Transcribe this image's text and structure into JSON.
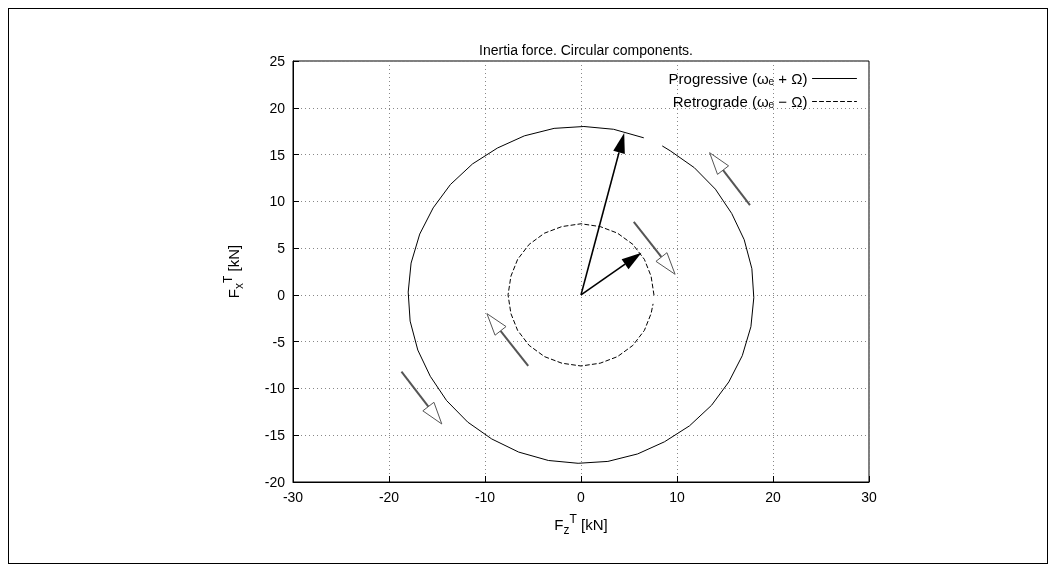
{
  "chart_data": {
    "type": "line",
    "title": "Inertia force. Circular components.",
    "xlabel": "F$_{z}$$^{T}$ [kN]",
    "ylabel": "F$_{x}$$^{T}$ [kN]",
    "xlim": [
      -30,
      30
    ],
    "xticks": [
      -30,
      -20,
      -10,
      0,
      10,
      20,
      30
    ],
    "ylim": [
      -20,
      25
    ],
    "yticks": [
      -20,
      -15,
      -10,
      -5,
      0,
      5,
      10,
      15,
      20,
      25
    ],
    "grid": true,
    "legend": "top right",
    "marker": "none",
    "series": [
      {
        "name": "Progressive (ωₑ + Ω)",
        "color": "#000000",
        "line_style": "solid",
        "x": [
          6.5,
          3.4,
          0.3,
          -2.8,
          -5.9,
          -8.7,
          -11.3,
          -13.6,
          -15.4,
          -16.8,
          -17.7,
          -18.0,
          -17.8,
          -17.0,
          -15.7,
          -14.0,
          -11.8,
          -9.3,
          -6.5,
          -3.4,
          -0.3,
          2.8,
          5.9,
          8.7,
          11.3,
          13.6,
          15.4,
          16.8,
          17.7,
          18.0,
          17.8,
          17.0,
          15.7,
          14.0,
          11.8,
          9.3,
          8.5
        ],
        "values": [
          16.8,
          17.7,
          18.0,
          17.8,
          17.0,
          15.7,
          14.0,
          11.8,
          9.3,
          6.5,
          3.4,
          0.3,
          -2.8,
          -5.9,
          -8.7,
          -11.3,
          -13.6,
          -15.4,
          -16.8,
          -17.7,
          -18.0,
          -17.8,
          -17.0,
          -15.7,
          -14.0,
          -11.8,
          -9.3,
          -6.5,
          -3.4,
          -0.3,
          2.8,
          5.9,
          8.7,
          11.3,
          13.6,
          15.4,
          15.9
        ]
      },
      {
        "name": "Retrograde (ωₑ − Ω)",
        "color": "#000000",
        "line_style": "dashed",
        "x": [
          7.6,
          7.3,
          6.6,
          5.4,
          3.8,
          2.0,
          0,
          -2.0,
          -3.8,
          -5.4,
          -6.6,
          -7.3,
          -7.6,
          -7.3,
          -6.6,
          -5.4,
          -3.8,
          -2.0,
          0,
          2.0,
          3.8,
          5.4,
          6.6,
          7.3,
          7.5
        ],
        "values": [
          0,
          2.0,
          3.8,
          5.4,
          6.6,
          7.3,
          7.6,
          7.3,
          6.6,
          5.4,
          3.8,
          2.0,
          0,
          -2.0,
          -3.8,
          -5.4,
          -6.6,
          -7.3,
          -7.6,
          -7.3,
          -6.6,
          -5.4,
          -3.8,
          -2.0,
          -1.0
        ]
      }
    ]
  }
}
